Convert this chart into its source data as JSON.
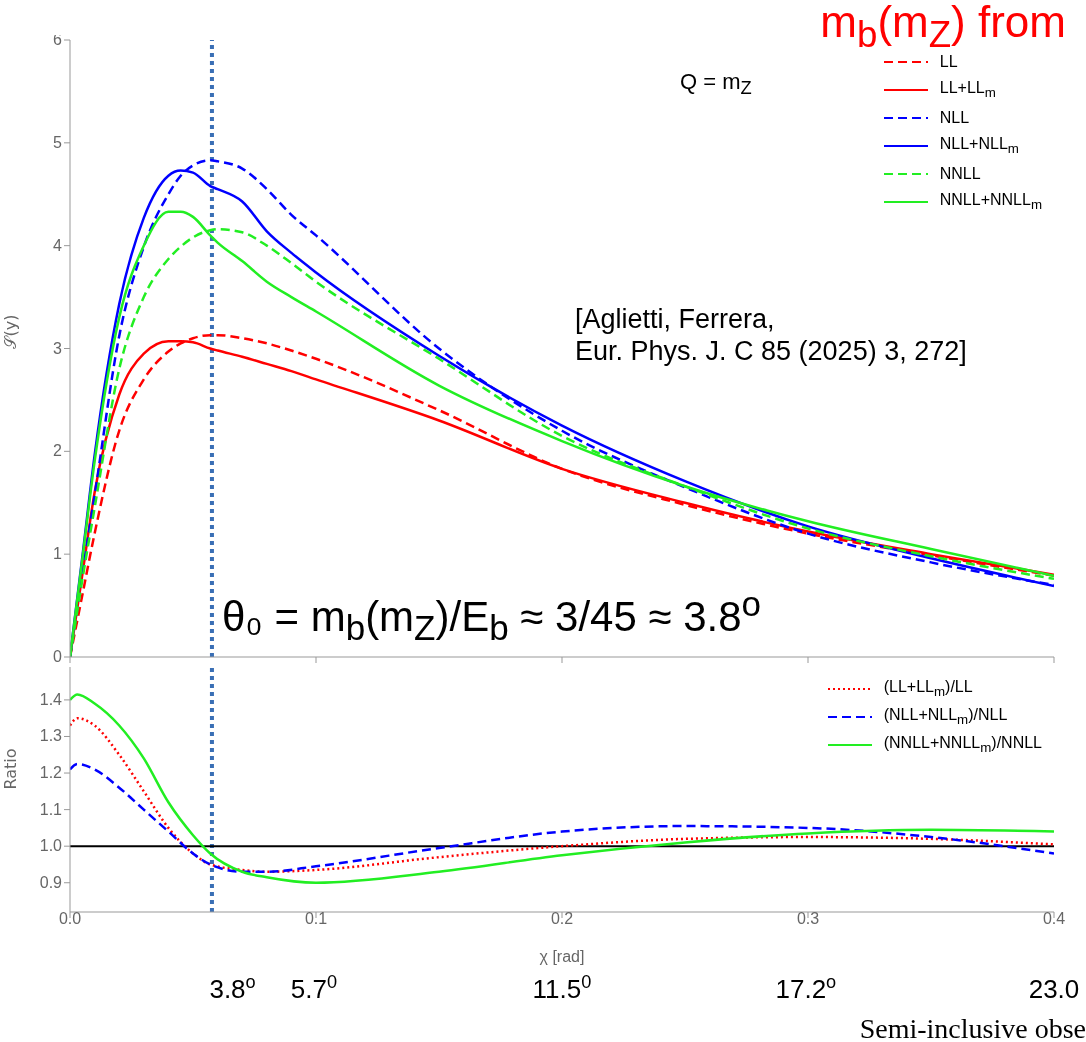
{
  "chart_data": [
    {
      "type": "line",
      "title": "m$_{b}$(m$_{Z}$) from",
      "ylabel": "𝒮(y)",
      "xlim": [
        0,
        0.4
      ],
      "xticks": [
        0,
        0.1,
        0.2,
        0.3,
        0.4
      ],
      "ylim": [
        0,
        6
      ],
      "yticks": [
        0,
        1,
        2,
        3,
        4,
        5,
        6
      ],
      "tick_labels": "y",
      "legend": "top right",
      "grid": false,
      "x": [
        0,
        0.005,
        0.01,
        0.02,
        0.03,
        0.04,
        0.045,
        0.05,
        0.057,
        0.06,
        0.07,
        0.08,
        0.09,
        0.1,
        0.15,
        0.2,
        0.25,
        0.3,
        0.35,
        0.4
      ],
      "series": [
        {
          "name": "LL",
          "color": "#ff0000",
          "line_style": "dashed",
          "values": [
            0,
            0.6,
            1.2,
            2.2,
            2.7,
            2.97,
            3.05,
            3.1,
            3.13,
            3.13,
            3.1,
            3.05,
            2.98,
            2.9,
            2.4,
            1.83,
            1.48,
            1.2,
            0.99,
            0.79
          ]
        },
        {
          "name": "LL+LL$_{m}$",
          "color": "#ff0000",
          "line_style": "solid",
          "values": [
            0,
            0.8,
            1.6,
            2.55,
            2.95,
            3.07,
            3.07,
            3.06,
            3.0,
            2.98,
            2.92,
            2.85,
            2.78,
            2.7,
            2.3,
            1.83,
            1.5,
            1.22,
            1.0,
            0.8
          ]
        },
        {
          "name": "NLL",
          "color": "#0000ff",
          "line_style": "dashed",
          "values": [
            0,
            0.8,
            1.57,
            3.12,
            3.99,
            4.5,
            4.68,
            4.78,
            4.83,
            4.82,
            4.75,
            4.55,
            4.3,
            4.1,
            3.0,
            2.2,
            1.65,
            1.2,
            0.92,
            0.7
          ]
        },
        {
          "name": "NLL+NLL$_{m}$",
          "color": "#0000ff",
          "line_style": "solid",
          "values": [
            0,
            0.97,
            1.96,
            3.43,
            4.27,
            4.68,
            4.73,
            4.71,
            4.58,
            4.55,
            4.43,
            4.14,
            3.93,
            3.74,
            2.93,
            2.25,
            1.71,
            1.27,
            0.96,
            0.69
          ]
        },
        {
          "name": "NNLL",
          "color": "#22ee22",
          "line_style": "dashed",
          "values": [
            0,
            0.75,
            1.45,
            2.8,
            3.5,
            3.87,
            3.99,
            4.08,
            4.15,
            4.16,
            4.13,
            4.0,
            3.83,
            3.65,
            2.9,
            2.15,
            1.66,
            1.25,
            0.98,
            0.76
          ]
        },
        {
          "name": "NNLL+NNLL$_{m}$",
          "color": "#22ee22",
          "line_style": "solid",
          "values": [
            0,
            0.95,
            1.9,
            3.3,
            4.0,
            4.33,
            4.33,
            4.28,
            4.1,
            4.03,
            3.85,
            3.65,
            3.5,
            3.36,
            2.64,
            2.1,
            1.66,
            1.32,
            1.05,
            0.79
          ]
        }
      ],
      "annotations": [
        "Q = m$_{Z}$",
        "[Aglietti, Ferrera,\nEur. Phys. J. C 85 (2025) 3, 272]",
        "θ₀ = m$_{b}$(m$_{Z}$)/E$_{b}$ ≈ 3/45 ≈ 3.8$^{o}$"
      ],
      "ref_lines": [
        {
          "axis": "x",
          "value": 0.0577,
          "color": "#3a6fb5",
          "line_style": "dotted"
        }
      ]
    },
    {
      "type": "line",
      "xlabel": "χ [rad]",
      "ylabel": "Ratio",
      "xlim": [
        0,
        0.4
      ],
      "xticks": [
        {
          "value": 0,
          "label": "0.0"
        },
        0.1,
        0.2,
        0.3,
        0.4
      ],
      "ylim": [
        0.82,
        1.49
      ],
      "yticks": [
        0.9,
        {
          "value": 1,
          "label": "1.0"
        },
        1.1,
        1.2,
        1.3,
        1.4
      ],
      "legend": "top right",
      "grid": false,
      "x2lim": [
        0,
        23.0
      ],
      "x2ticks": [
        {
          "value": 3.8,
          "label": "3.8$^{o}$"
        },
        {
          "value": 5.7,
          "label": "5.7$^{0}$"
        },
        {
          "value": 11.5,
          "label": "11.5$^{0}$"
        },
        {
          "value": 17.2,
          "label": "17.2$^{o}$"
        },
        {
          "value": 23.0,
          "label": "23.0"
        }
      ],
      "x2label": "Semi-inclusive obse",
      "x": [
        0,
        0.003,
        0.01,
        0.02,
        0.03,
        0.04,
        0.05,
        0.057,
        0.07,
        0.08,
        0.1,
        0.15,
        0.2,
        0.25,
        0.3,
        0.35,
        0.4
      ],
      "series": [
        {
          "name": "(LL+LL$_{m}$)/LL",
          "color": "#ff0000",
          "line_style": "dotted",
          "values": [
            1.33,
            1.35,
            1.33,
            1.25,
            1.15,
            1.05,
            0.98,
            0.95,
            0.935,
            0.93,
            0.935,
            0.97,
            1.0,
            1.02,
            1.025,
            1.02,
            1.005
          ]
        },
        {
          "name": "(NLL+NLL$_{m}$)/NLL",
          "color": "#0000ff",
          "line_style": "dashed",
          "values": [
            1.21,
            1.225,
            1.21,
            1.16,
            1.1,
            1.04,
            0.98,
            0.95,
            0.93,
            0.93,
            0.945,
            0.995,
            1.04,
            1.055,
            1.05,
            1.025,
            0.98
          ]
        },
        {
          "name": "(NNLL+NNLL$_{m}$)/NNLL",
          "color": "#22ee22",
          "line_style": "solid",
          "values": [
            1.4,
            1.415,
            1.39,
            1.33,
            1.24,
            1.12,
            1.03,
            0.98,
            0.93,
            0.915,
            0.9,
            0.93,
            0.975,
            1.01,
            1.035,
            1.045,
            1.04
          ]
        }
      ],
      "ref_lines": [
        {
          "axis": "x",
          "value": 0.0577,
          "color": "#3a6fb5",
          "line_style": "dotted"
        },
        {
          "axis": "y",
          "value": 1,
          "color": "#000000",
          "line_style": "solid"
        }
      ]
    }
  ]
}
